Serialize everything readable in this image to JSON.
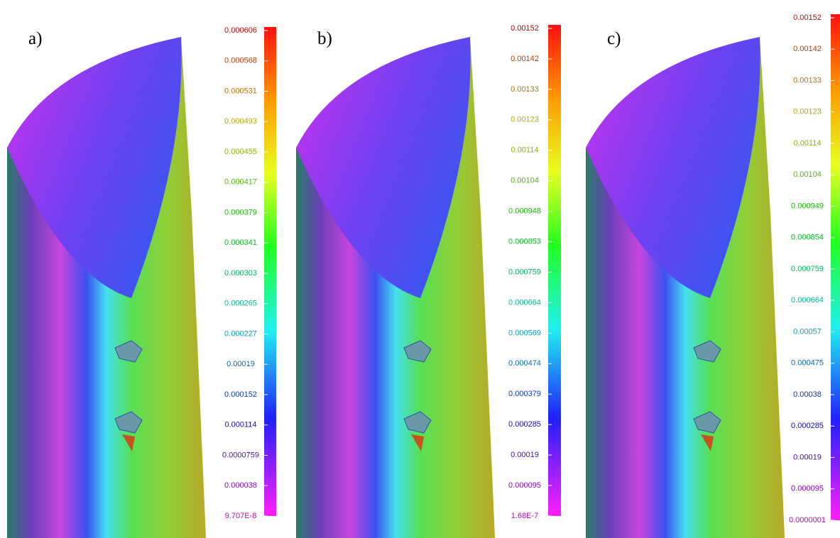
{
  "panels": [
    {
      "label": "a)",
      "scale": [
        "0.000606",
        "0.000568",
        "0.000531",
        "0.000493",
        "0.000455",
        "0.000417",
        "0.000379",
        "0.000341",
        "0.000303",
        "0.000265",
        "0.000227",
        "0.00019",
        "0.000152",
        "0.000114",
        "0.0000759",
        "0.000038",
        "9.707E-8"
      ]
    },
    {
      "label": "b)",
      "scale": [
        "0.00152",
        "0.00142",
        "0.00133",
        "0.00123",
        "0.00114",
        "0.00104",
        "0.000948",
        "0.000853",
        "0.000759",
        "0.000664",
        "0.000569",
        "0.000474",
        "0.000379",
        "0.000285",
        "0.00019",
        "0.000095",
        "1.68E-7"
      ]
    },
    {
      "label": "c)",
      "scale": [
        "0.00152",
        "0.00142",
        "0.00133",
        "0.00123",
        "0.00114",
        "0.00104",
        "0.000949",
        "0.000854",
        "0.000759",
        "0.000664",
        "0.00057",
        "0.000475",
        "0.00038",
        "0.000285",
        "0.00019",
        "0.000095",
        "0.0000001"
      ]
    }
  ]
}
